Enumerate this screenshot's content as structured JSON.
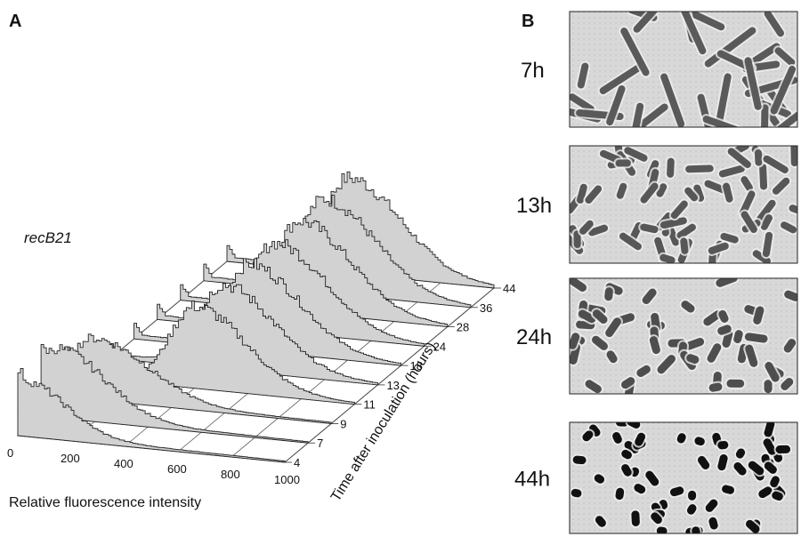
{
  "panels": {
    "a": "A",
    "b": "B"
  },
  "chart_data": {
    "type": "area",
    "strain_label": "recB21",
    "xlabel": "Relative fluorescence intensity",
    "ylabel": "Time after inoculation (hours)",
    "x_ticks": [
      0,
      200,
      400,
      600,
      800,
      1000
    ],
    "xlim": [
      0,
      1000
    ],
    "series": [
      {
        "name": "4",
        "peak_x": 20,
        "peak_h": 0.55,
        "width": 140
      },
      {
        "name": "7",
        "peak_x": 60,
        "peak_h": 0.7,
        "width": 160
      },
      {
        "name": "9",
        "peak_x": 110,
        "peak_h": 0.62,
        "width": 180
      },
      {
        "name": "11",
        "peak_x": 400,
        "peak_h": 0.85,
        "width": 170
      },
      {
        "name": "13",
        "peak_x": 420,
        "peak_h": 0.88,
        "width": 170
      },
      {
        "name": "18",
        "peak_x": 430,
        "peak_h": 0.9,
        "width": 170
      },
      {
        "name": "24",
        "peak_x": 440,
        "peak_h": 0.92,
        "width": 170
      },
      {
        "name": "28",
        "peak_x": 445,
        "peak_h": 0.95,
        "width": 170
      },
      {
        "name": "36",
        "peak_x": 450,
        "peak_h": 0.98,
        "width": 170
      },
      {
        "name": "44",
        "peak_x": 455,
        "peak_h": 1.0,
        "width": 175
      }
    ]
  },
  "micrographs": [
    {
      "time": "7h",
      "cell_type": "long-filaments"
    },
    {
      "time": "13h",
      "cell_type": "medium-rods"
    },
    {
      "time": "24h",
      "cell_type": "short-rods"
    },
    {
      "time": "44h",
      "cell_type": "dark-short-rods"
    }
  ]
}
